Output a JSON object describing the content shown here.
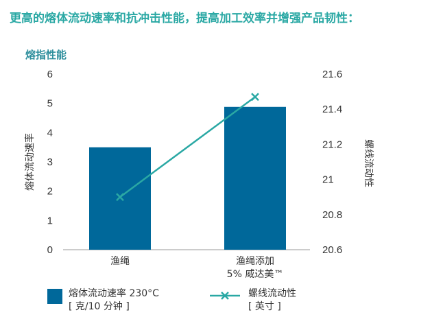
{
  "header": {
    "headline": "更高的熔体流动速率和抗冲击性能，提高加工效率并增强产品韧性：",
    "subtitle": "熔指性能"
  },
  "colors": {
    "bar": "#00689a",
    "line": "#2aa8a4",
    "text": "#333333"
  },
  "chart_data": {
    "type": "bar",
    "categories": [
      {
        "line1": "渔绳",
        "line2": ""
      },
      {
        "line1": "渔绳添加",
        "line2": "5% 威达美™"
      }
    ],
    "series": [
      {
        "name": "熔体流动速率 230°C",
        "unit": "[ 克/10 分钟 ]",
        "type": "bar",
        "axis": "left",
        "values": [
          3.5,
          4.88
        ]
      },
      {
        "name": "螺线流动性",
        "unit": "[ 英寸 ]",
        "type": "line",
        "axis": "right",
        "values": [
          20.9,
          21.47
        ]
      }
    ],
    "y_left": {
      "label": "熔体流动速率",
      "range": [
        0,
        6
      ],
      "ticks": [
        "0",
        "1",
        "2",
        "3",
        "4",
        "5",
        "6"
      ]
    },
    "y_right": {
      "label": "螺线流动性",
      "range": [
        20.6,
        21.6
      ],
      "ticks": [
        "20.6",
        "20.8",
        "21",
        "21.2",
        "21.4",
        "21.6"
      ]
    },
    "grid": false,
    "legend_position": "bottom"
  }
}
